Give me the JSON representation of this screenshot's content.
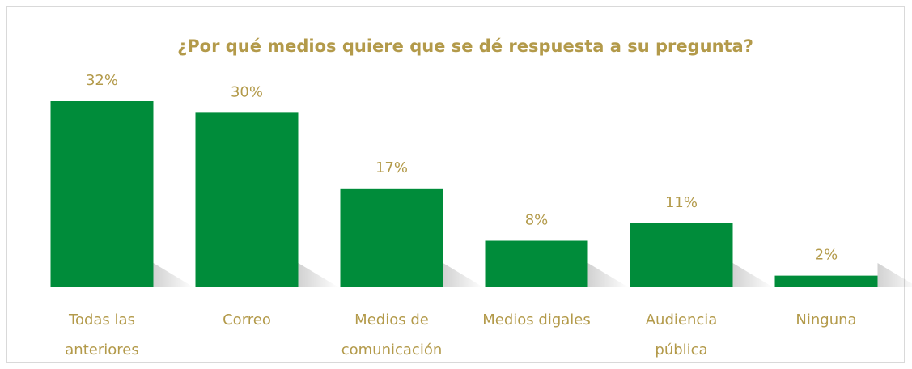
{
  "chart_data": {
    "type": "bar",
    "title": "¿Por qué medios quiere que se dé respuesta a su pregunta?",
    "categories": [
      [
        "Todas las",
        "anteriores"
      ],
      [
        "Correo"
      ],
      [
        "Medios de",
        "comunicación"
      ],
      [
        "Medios digales"
      ],
      [
        "Audiencia",
        "pública"
      ],
      [
        "Ninguna"
      ]
    ],
    "values": [
      32,
      30,
      17,
      8,
      11,
      2
    ],
    "value_labels": [
      "32%",
      "30%",
      "17%",
      "8%",
      "11%",
      "2%"
    ],
    "color": "#008c3a"
  }
}
